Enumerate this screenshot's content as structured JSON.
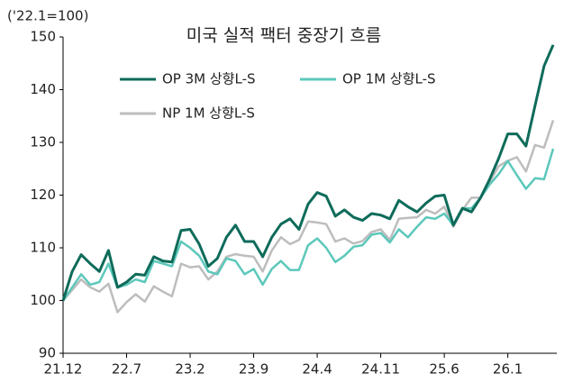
{
  "chart_data": {
    "type": "line",
    "title": "미국 실적 팩터 중장기 흐름",
    "y_label": "('22.1=100)",
    "categories": [
      "21.12",
      null,
      null,
      null,
      null,
      null,
      null,
      "22.7",
      null,
      null,
      null,
      null,
      null,
      null,
      "23.2",
      null,
      null,
      null,
      null,
      null,
      null,
      "23.9",
      null,
      null,
      null,
      null,
      null,
      null,
      "24.4",
      null,
      null,
      null,
      null,
      null,
      null,
      "24.11",
      null,
      null,
      null,
      null,
      null,
      null,
      "25.6",
      null,
      null,
      null,
      null,
      null,
      null,
      "26.1",
      null,
      null,
      null,
      null,
      null
    ],
    "series": [
      {
        "name": "OP 3M 상향L-S",
        "color": "#0e6b5a",
        "values": [
          100,
          105.5,
          108.7,
          107,
          105.5,
          109.5,
          102.5,
          103.5,
          105,
          104.8,
          108.3,
          107.5,
          107.3,
          113.3,
          113.5,
          110.7,
          106.5,
          108,
          112,
          114.3,
          111.2,
          111.2,
          108.3,
          112,
          114.5,
          115.5,
          113.5,
          118.3,
          120.5,
          119.8,
          116,
          117.2,
          115.8,
          115.2,
          116.5,
          116.2,
          115.5,
          119,
          117.8,
          116.8,
          118.5,
          119.8,
          120,
          114.3,
          117.5,
          116.8,
          119.5,
          123,
          127,
          131.6,
          131.6,
          129.3,
          137,
          144.5,
          148.5
        ]
      },
      {
        "name": "OP 1M 상향L-S",
        "color": "#5cc8bb",
        "values": [
          100,
          102.5,
          105,
          103,
          103.5,
          107,
          102.5,
          103,
          104,
          103.5,
          107.5,
          107,
          106.5,
          111.2,
          110,
          108.5,
          105.5,
          105,
          108,
          107.5,
          105,
          106,
          103,
          106,
          107.5,
          105.8,
          105.8,
          110.5,
          111.8,
          110,
          107.3,
          108.5,
          110.2,
          110.5,
          112.5,
          112.8,
          111,
          113.5,
          112,
          114,
          115.8,
          115.5,
          116.5,
          114.3,
          117.5,
          117.5,
          119.5,
          122,
          124,
          126.5,
          123.8,
          121.2,
          123.2,
          123,
          128.8
        ]
      },
      {
        "name": "NP 1M 상향L-S",
        "color": "#bdbdbd",
        "values": [
          100,
          102,
          104,
          102.5,
          101.7,
          103.2,
          97.8,
          99.7,
          101.2,
          99.8,
          102.7,
          101.7,
          100.8,
          107,
          106.3,
          106.5,
          104,
          105.5,
          108.3,
          108.8,
          108.5,
          108.3,
          105.5,
          109.5,
          112,
          110.7,
          111.5,
          115,
          114.8,
          114.5,
          111.2,
          111.8,
          110.8,
          111.3,
          113,
          113.5,
          111.5,
          115.5,
          115.7,
          115.8,
          117.2,
          116.5,
          117.8,
          114,
          117.2,
          119.5,
          119.5,
          122.5,
          125.5,
          126.5,
          127.2,
          124.5,
          129.5,
          129,
          134.2
        ]
      }
    ],
    "ylim": [
      90,
      150
    ],
    "yticks": [
      90,
      100,
      110,
      120,
      130,
      140,
      150
    ],
    "grid": false
  }
}
